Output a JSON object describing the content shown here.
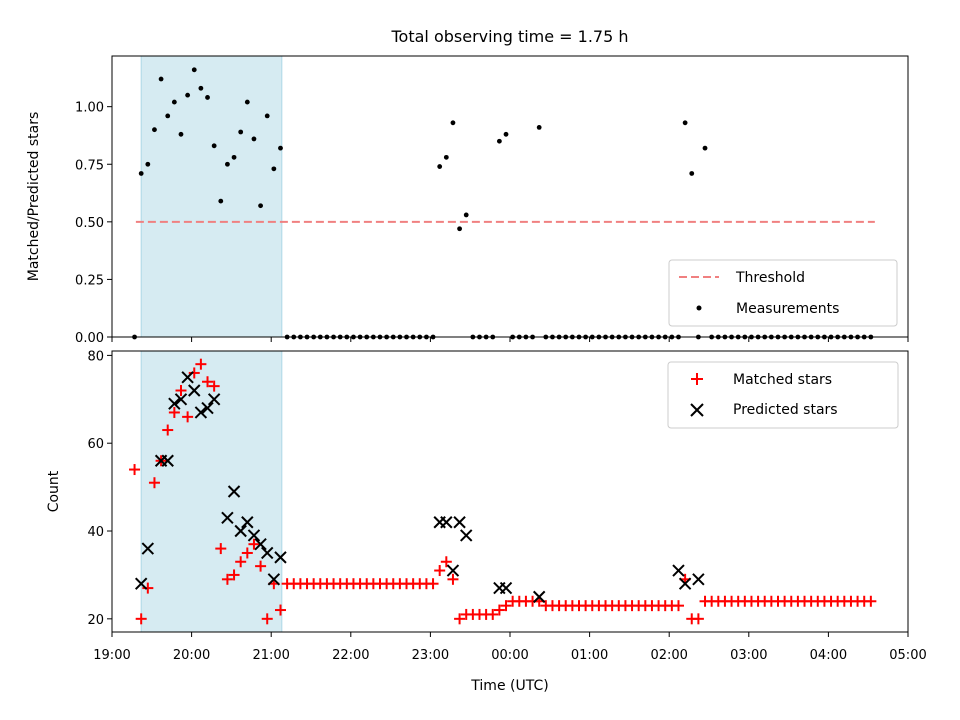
{
  "chart_data": [
    {
      "type": "scatter",
      "title": "Total observing time = 1.75 h",
      "ylabel": "Matched/Predicted stars",
      "ylim": [
        0,
        1.22
      ],
      "yticks": [
        0,
        0.25,
        0.5,
        0.75,
        1.0
      ],
      "ytick_labels": [
        "0.00",
        "0.25",
        "0.50",
        "0.75",
        "1.00"
      ],
      "xlim": [
        "19:00",
        "05:00"
      ],
      "shaded_region": {
        "start": "19:22",
        "end": "21:08",
        "color": "#add8e6"
      },
      "threshold": {
        "name": "Threshold",
        "value": 0.5,
        "start": "19:18",
        "end": "04:35",
        "color": "#f08080"
      },
      "series": [
        {
          "name": "Measurements",
          "color": "#000000",
          "x": [
            "19:17",
            "19:22",
            "19:27",
            "19:32",
            "19:37",
            "19:42",
            "19:47",
            "19:52",
            "19:57",
            "20:02",
            "20:07",
            "20:12",
            "20:17",
            "20:22",
            "20:27",
            "20:32",
            "20:37",
            "20:42",
            "20:47",
            "20:52",
            "20:57",
            "21:02",
            "21:07",
            "21:12",
            "21:17",
            "21:22",
            "21:27",
            "21:32",
            "21:37",
            "21:42",
            "21:47",
            "21:52",
            "21:57",
            "22:02",
            "22:07",
            "22:12",
            "22:17",
            "22:22",
            "22:27",
            "22:32",
            "22:37",
            "22:42",
            "22:47",
            "22:52",
            "22:57",
            "23:02",
            "23:07",
            "23:12",
            "23:17",
            "23:22",
            "23:27",
            "23:32",
            "23:37",
            "23:42",
            "23:47",
            "23:52",
            "23:57",
            "00:02",
            "00:07",
            "00:12",
            "00:17",
            "00:22",
            "00:27",
            "00:32",
            "00:37",
            "00:42",
            "00:47",
            "00:52",
            "00:57",
            "01:02",
            "01:07",
            "01:12",
            "01:17",
            "01:22",
            "01:27",
            "01:32",
            "01:37",
            "01:42",
            "01:47",
            "01:52",
            "01:57",
            "02:02",
            "02:07",
            "02:12",
            "02:17",
            "02:22",
            "02:27",
            "02:32",
            "02:37",
            "02:42",
            "02:47",
            "02:52",
            "02:57",
            "03:02",
            "03:07",
            "03:12",
            "03:17",
            "03:22",
            "03:27",
            "03:32",
            "03:37",
            "03:42",
            "03:47",
            "03:52",
            "03:57",
            "04:02",
            "04:07",
            "04:12",
            "04:17",
            "04:22",
            "04:27",
            "04:32"
          ],
          "y": [
            0,
            0.71,
            0.75,
            0.9,
            1.12,
            0.96,
            1.02,
            0.88,
            1.05,
            1.16,
            1.08,
            1.04,
            0.83,
            0.59,
            0.75,
            0.78,
            0.89,
            1.02,
            0.86,
            0.57,
            0.96,
            0.73,
            0.82,
            0,
            0,
            0,
            0,
            0,
            0,
            0,
            0,
            0,
            0,
            0,
            0,
            0,
            0,
            0,
            0,
            0,
            0,
            0,
            0,
            0,
            0,
            0,
            0.74,
            0.78,
            0.93,
            0.47,
            0.53,
            0,
            0,
            0,
            0,
            0.85,
            0.88,
            0,
            0,
            0,
            0,
            0.91,
            0,
            0,
            0,
            0,
            0,
            0,
            0,
            0,
            0,
            0,
            0,
            0,
            0,
            0,
            0,
            0,
            0,
            0,
            0,
            0,
            0,
            0.93,
            0.71,
            0,
            0.82,
            0,
            0,
            0,
            0,
            0,
            0,
            0,
            0,
            0,
            0,
            0,
            0,
            0,
            0,
            0,
            0,
            0,
            0,
            0,
            0,
            0,
            0,
            0,
            0,
            0
          ]
        }
      ],
      "legend": {
        "placement": "lower right",
        "entries": [
          "Threshold",
          "Measurements"
        ]
      }
    },
    {
      "type": "scatter",
      "xlabel": "Time (UTC)",
      "ylabel": "Count",
      "ylim": [
        17,
        81
      ],
      "yticks": [
        20,
        40,
        60,
        80
      ],
      "ytick_labels": [
        "20",
        "40",
        "60",
        "80"
      ],
      "xlim": [
        "19:00",
        "05:00"
      ],
      "xticks": [
        "19:00",
        "20:00",
        "21:00",
        "22:00",
        "23:00",
        "00:00",
        "01:00",
        "02:00",
        "03:00",
        "04:00",
        "05:00"
      ],
      "shaded_region": {
        "start": "19:22",
        "end": "21:08",
        "color": "#add8e6"
      },
      "series": [
        {
          "name": "Matched stars",
          "marker": "+",
          "color": "#ff0000",
          "x": [
            "19:17",
            "19:22",
            "19:27",
            "19:32",
            "19:37",
            "19:42",
            "19:47",
            "19:52",
            "19:57",
            "20:02",
            "20:07",
            "20:12",
            "20:17",
            "20:22",
            "20:27",
            "20:32",
            "20:37",
            "20:42",
            "20:47",
            "20:52",
            "20:57",
            "21:02",
            "21:07",
            "21:12",
            "21:17",
            "21:22",
            "21:27",
            "21:32",
            "21:37",
            "21:42",
            "21:47",
            "21:52",
            "21:57",
            "22:02",
            "22:07",
            "22:12",
            "22:17",
            "22:22",
            "22:27",
            "22:32",
            "22:37",
            "22:42",
            "22:47",
            "22:52",
            "22:57",
            "23:02",
            "23:07",
            "23:12",
            "23:17",
            "23:22",
            "23:27",
            "23:32",
            "23:37",
            "23:42",
            "23:47",
            "23:52",
            "23:57",
            "00:02",
            "00:07",
            "00:12",
            "00:17",
            "00:22",
            "00:27",
            "00:32",
            "00:37",
            "00:42",
            "00:47",
            "00:52",
            "00:57",
            "01:02",
            "01:07",
            "01:12",
            "01:17",
            "01:22",
            "01:27",
            "01:32",
            "01:37",
            "01:42",
            "01:47",
            "01:52",
            "01:57",
            "02:02",
            "02:07",
            "02:12",
            "02:17",
            "02:22",
            "02:27",
            "02:32",
            "02:37",
            "02:42",
            "02:47",
            "02:52",
            "02:57",
            "03:02",
            "03:07",
            "03:12",
            "03:17",
            "03:22",
            "03:27",
            "03:32",
            "03:37",
            "03:42",
            "03:47",
            "03:52",
            "03:57",
            "04:02",
            "04:07",
            "04:12",
            "04:17",
            "04:22",
            "04:27",
            "04:32"
          ],
          "y": [
            54,
            20,
            27,
            51,
            56,
            63,
            67,
            72,
            66,
            76,
            78,
            74,
            73,
            36,
            29,
            30,
            33,
            35,
            37,
            32,
            20,
            28,
            22,
            28,
            28,
            28,
            28,
            28,
            28,
            28,
            28,
            28,
            28,
            28,
            28,
            28,
            28,
            28,
            28,
            28,
            28,
            28,
            28,
            28,
            28,
            28,
            31,
            33,
            29,
            20,
            21,
            21,
            21,
            21,
            21,
            22,
            23,
            24,
            24,
            24,
            24,
            24,
            23,
            23,
            23,
            23,
            23,
            23,
            23,
            23,
            23,
            23,
            23,
            23,
            23,
            23,
            23,
            23,
            23,
            23,
            23,
            23,
            23,
            29,
            20,
            20,
            24,
            24,
            24,
            24,
            24,
            24,
            24,
            24,
            24,
            24,
            24,
            24,
            24,
            24,
            24,
            24,
            24,
            24,
            24,
            24,
            24,
            24,
            24,
            24,
            24,
            24
          ]
        },
        {
          "name": "Predicted stars",
          "marker": "x",
          "color": "#000000",
          "x": [
            "19:22",
            "19:27",
            "19:37",
            "19:42",
            "19:47",
            "19:52",
            "19:57",
            "20:02",
            "20:07",
            "20:12",
            "20:17",
            "20:27",
            "20:32",
            "20:37",
            "20:42",
            "20:47",
            "20:52",
            "20:57",
            "21:02",
            "21:07",
            "23:07",
            "23:12",
            "23:17",
            "23:22",
            "23:27",
            "23:52",
            "23:57",
            "00:22",
            "02:07",
            "02:12",
            "02:22"
          ],
          "y": [
            28,
            36,
            56,
            56,
            69,
            70,
            75,
            72,
            67,
            68,
            70,
            43,
            49,
            40,
            42,
            39,
            37,
            35,
            29,
            34,
            42,
            42,
            31,
            42,
            39,
            27,
            27,
            25,
            31,
            28,
            29
          ]
        }
      ],
      "legend": {
        "placement": "upper right",
        "entries": [
          "Matched stars",
          "Predicted stars"
        ]
      }
    }
  ]
}
